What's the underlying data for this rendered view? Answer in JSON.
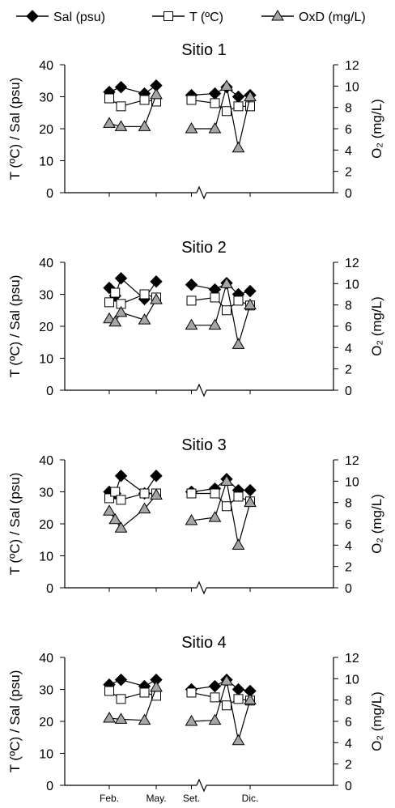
{
  "legend": [
    {
      "label": "Sal (psu)",
      "marker": "diamond",
      "fill": "#000000"
    },
    {
      "label": "T (ºC)",
      "marker": "square",
      "fill": "#ffffff"
    },
    {
      "label": "OxD (mg/L)",
      "marker": "triangle",
      "fill": "#a6a6a6"
    }
  ],
  "chart_data": [
    {
      "type": "line",
      "title": "Sitio 1",
      "xlabel": "",
      "ylabel": "T (ºC) / Sal (psu)",
      "y2label": "O₂ (mg/L)",
      "ylim": [
        0,
        40
      ],
      "y2lim": [
        0,
        12
      ],
      "yticks": [
        "0",
        "10",
        "20",
        "30",
        "40"
      ],
      "y2ticks": [
        "0",
        "2",
        "4",
        "6",
        "8",
        "10",
        "12"
      ],
      "x_categories": [],
      "axis_break": true,
      "series": [
        {
          "name": "Sal (psu)",
          "axis": "left",
          "points": [
            [
              1,
              31.5
            ],
            [
              2,
              33
            ],
            [
              4,
              31
            ],
            [
              5,
              33.5
            ],
            [
              8,
              30.5
            ],
            [
              10,
              31
            ],
            [
              11,
              33
            ],
            [
              12,
              30
            ],
            [
              13,
              30.5
            ]
          ]
        },
        {
          "name": "T (ºC)",
          "axis": "left",
          "points": [
            [
              1,
              29.5
            ],
            [
              2,
              27
            ],
            [
              4,
              29
            ],
            [
              5,
              28.5
            ],
            [
              8,
              29
            ],
            [
              10,
              28
            ],
            [
              11,
              25.5
            ],
            [
              12,
              27
            ],
            [
              13,
              27
            ]
          ]
        },
        {
          "name": "OxD (mg/L)",
          "axis": "right",
          "points": [
            [
              1,
              6.5
            ],
            [
              2,
              6.2
            ],
            [
              4,
              6.2
            ],
            [
              5,
              9.2
            ],
            [
              8,
              6
            ],
            [
              10,
              6
            ],
            [
              11,
              10
            ],
            [
              12,
              4.2
            ],
            [
              13,
              9
            ]
          ]
        }
      ]
    },
    {
      "type": "line",
      "title": "Sitio 2",
      "xlabel": "",
      "ylabel": "T (ºC) / Sal (psu)",
      "y2label": "O₂ (mg/L)",
      "ylim": [
        0,
        40
      ],
      "y2lim": [
        0,
        12
      ],
      "yticks": [
        "0",
        "10",
        "20",
        "30",
        "40"
      ],
      "y2ticks": [
        "0",
        "2",
        "4",
        "6",
        "8",
        "10",
        "12"
      ],
      "x_categories": [],
      "axis_break": true,
      "series": [
        {
          "name": "Sal (psu)",
          "axis": "left",
          "points": [
            [
              1,
              32
            ],
            [
              1.5,
              29.5
            ],
            [
              2,
              35
            ],
            [
              4,
              28.5
            ],
            [
              5,
              34
            ]
          ]
        },
        {
          "name": "T (ºC)",
          "axis": "left",
          "points": [
            [
              1,
              27.5
            ],
            [
              1.5,
              30.5
            ],
            [
              2,
              27
            ],
            [
              4,
              30
            ],
            [
              5,
              29
            ]
          ]
        },
        {
          "name": "OxD (mg/L)",
          "axis": "right",
          "points": [
            [
              1,
              6.7
            ],
            [
              1.5,
              6.4
            ],
            [
              2,
              7.3
            ],
            [
              4,
              6.6
            ],
            [
              5,
              8.5
            ]
          ]
        }
      ],
      "series_b": [
        {
          "name": "Sal (psu)",
          "axis": "left",
          "points": [
            [
              8,
              33
            ],
            [
              10,
              31.5
            ],
            [
              11,
              33.5
            ],
            [
              12,
              30
            ],
            [
              13,
              31
            ]
          ]
        },
        {
          "name": "T (ºC)",
          "axis": "left",
          "points": [
            [
              8,
              28
            ],
            [
              10,
              29
            ],
            [
              11,
              25
            ],
            [
              12,
              28
            ],
            [
              13,
              26.5
            ]
          ]
        },
        {
          "name": "OxD (mg/L)",
          "axis": "right",
          "points": [
            [
              8,
              6.1
            ],
            [
              10,
              6.1
            ],
            [
              11,
              10
            ],
            [
              12,
              4.3
            ],
            [
              13,
              8
            ]
          ]
        }
      ]
    },
    {
      "type": "line",
      "title": "Sitio 3",
      "xlabel": "",
      "ylabel": "T (ºC) / Sal (psu)",
      "y2label": "O₂ (mg/L)",
      "ylim": [
        0,
        40
      ],
      "y2lim": [
        0,
        12
      ],
      "yticks": [
        "0",
        "10",
        "20",
        "30",
        "40"
      ],
      "y2ticks": [
        "0",
        "2",
        "4",
        "6",
        "8",
        "10",
        "12"
      ],
      "x_categories": [],
      "axis_break": true,
      "series": [
        {
          "name": "Sal (psu)",
          "axis": "left",
          "points": [
            [
              1,
              30
            ],
            [
              1.5,
              29.5
            ],
            [
              2,
              35
            ],
            [
              4,
              29.5
            ],
            [
              5,
              35
            ]
          ]
        },
        {
          "name": "T (ºC)",
          "axis": "left",
          "points": [
            [
              1,
              28
            ],
            [
              1.5,
              30
            ],
            [
              2,
              27.5
            ],
            [
              4,
              29.5
            ],
            [
              5,
              29.5
            ]
          ]
        },
        {
          "name": "OxD (mg/L)",
          "axis": "right",
          "points": [
            [
              1,
              7.2
            ],
            [
              1.5,
              6.4
            ],
            [
              2,
              5.6
            ],
            [
              4,
              7.4
            ],
            [
              5,
              8.7
            ]
          ]
        }
      ],
      "series_b": [
        {
          "name": "Sal (psu)",
          "axis": "left",
          "points": [
            [
              8,
              30
            ],
            [
              10,
              31
            ],
            [
              11,
              34
            ],
            [
              12,
              30.5
            ],
            [
              13,
              30.5
            ]
          ]
        },
        {
          "name": "T (ºC)",
          "axis": "left",
          "points": [
            [
              8,
              29.5
            ],
            [
              10,
              29.5
            ],
            [
              11,
              25.5
            ],
            [
              12,
              28.5
            ],
            [
              13,
              27
            ]
          ]
        },
        {
          "name": "OxD (mg/L)",
          "axis": "right",
          "points": [
            [
              8,
              6.3
            ],
            [
              10,
              6.6
            ],
            [
              11,
              10
            ],
            [
              12,
              4
            ],
            [
              13,
              8
            ]
          ]
        }
      ]
    },
    {
      "type": "line",
      "title": "Sitio 4",
      "xlabel": "",
      "ylabel": "T (ºC) / Sal (psu)",
      "y2label": "O₂ (mg/L)",
      "ylim": [
        0,
        40
      ],
      "y2lim": [
        0,
        12
      ],
      "yticks": [
        "0",
        "10",
        "20",
        "30",
        "40"
      ],
      "y2ticks": [
        "0",
        "2",
        "4",
        "6",
        "8",
        "10",
        "12"
      ],
      "x_categories": [
        "Feb.",
        "May.",
        "Set.",
        "Dic."
      ],
      "x_category_positions": [
        1,
        5,
        8,
        13
      ],
      "axis_break": true,
      "series": [
        {
          "name": "Sal (psu)",
          "axis": "left",
          "points": [
            [
              1,
              31.5
            ],
            [
              2,
              33
            ],
            [
              4,
              31
            ],
            [
              5,
              33
            ]
          ]
        },
        {
          "name": "T (ºC)",
          "axis": "left",
          "points": [
            [
              1,
              29.5
            ],
            [
              2,
              27
            ],
            [
              4,
              29
            ],
            [
              5,
              28
            ]
          ]
        },
        {
          "name": "OxD (mg/L)",
          "axis": "right",
          "points": [
            [
              1,
              6.3
            ],
            [
              2,
              6.2
            ],
            [
              4,
              6.1
            ],
            [
              5,
              9.2
            ]
          ]
        }
      ],
      "series_b": [
        {
          "name": "Sal (psu)",
          "axis": "left",
          "points": [
            [
              8,
              30
            ],
            [
              10,
              31
            ],
            [
              11,
              33
            ],
            [
              12,
              30
            ],
            [
              13,
              29.5
            ]
          ]
        },
        {
          "name": "T (ºC)",
          "axis": "left",
          "points": [
            [
              8,
              29
            ],
            [
              10,
              27.5
            ],
            [
              11,
              25
            ],
            [
              12,
              27
            ],
            [
              13,
              26.5
            ]
          ]
        },
        {
          "name": "OxD (mg/L)",
          "axis": "right",
          "points": [
            [
              8,
              6
            ],
            [
              10,
              6.1
            ],
            [
              11,
              9.8
            ],
            [
              12,
              4.2
            ],
            [
              13,
              8
            ]
          ]
        }
      ]
    }
  ]
}
